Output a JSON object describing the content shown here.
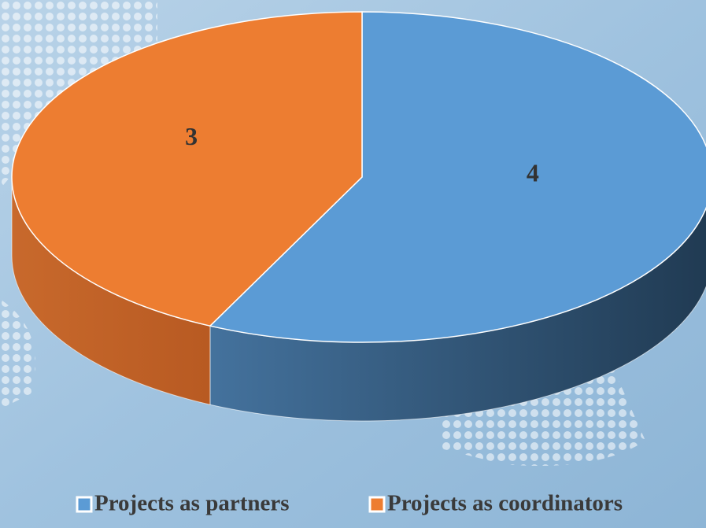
{
  "chart_data": {
    "type": "pie",
    "categories": [
      "Projects as partners",
      "Projects as coordinators"
    ],
    "values": [
      4,
      3
    ],
    "colors": [
      "#5b9bd5",
      "#ed7d31"
    ],
    "legend": "bottom"
  }
}
